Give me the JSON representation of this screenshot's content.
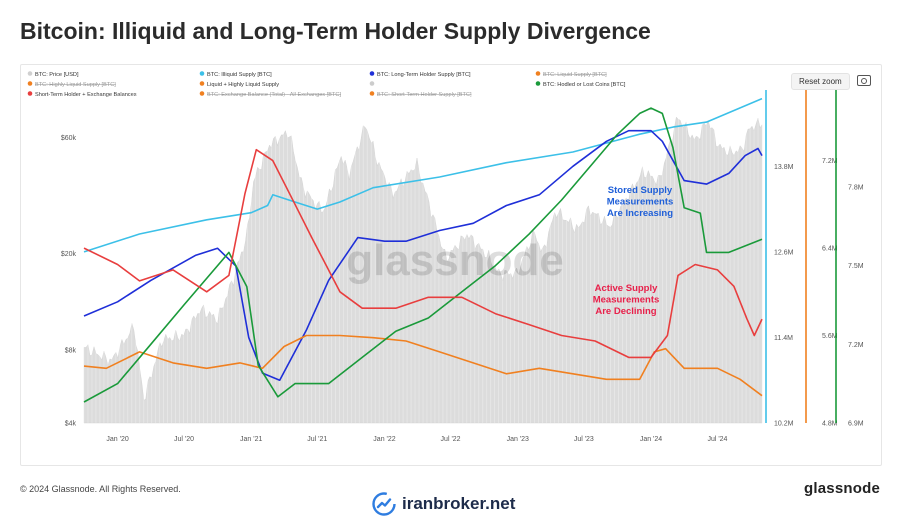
{
  "header": {
    "title": "Bitcoin: Illiquid and Long-Term Holder Supply Divergence"
  },
  "toolbar": {
    "reset_zoom_label": "Reset zoom",
    "camera_icon": "camera-icon"
  },
  "footer": {
    "copyright": "© 2024 Glassnode. All Rights Reserved.",
    "brand": "glassnode",
    "watermark_text": "iranbroker.net",
    "watermark_icon": "chart-logo-icon"
  },
  "chart_data": {
    "type": "line",
    "watermark": "glassnode",
    "legend": [
      {
        "name": "BTC: Price [USD]",
        "color": "#d0d0d0",
        "struck": false
      },
      {
        "name": "BTC: Illiquid Supply [BTC]",
        "color": "#3cc0e8",
        "struck": false
      },
      {
        "name": "BTC: Long-Term Holder Supply [BTC]",
        "color": "#1f2fd8",
        "struck": false
      },
      {
        "name": "BTC: Liquid Supply [BTC]",
        "color": "#f08020",
        "struck": true
      },
      {
        "name": "BTC: Highly Liquid Supply [BTC]",
        "color": "#f08020",
        "struck": true
      },
      {
        "name": "Liquid + Highly Liquid Supply",
        "color": "#f08020",
        "struck": false
      },
      {
        "name": "",
        "color": "#cccccc",
        "struck": false
      },
      {
        "name": "BTC: Hodled or Lost Coins [BTC]",
        "color": "#1a9a3a",
        "struck": false
      },
      {
        "name": "Short-Term Holder + Exchange Balances",
        "color": "#e83e3e",
        "struck": false
      },
      {
        "name": "BTC: Exchange Balance (Total) - All Exchanges [BTC]",
        "color": "#f08020",
        "struck": true
      },
      {
        "name": "BTC: Short-Term Holder Supply [BTC]",
        "color": "#f08020",
        "struck": true
      }
    ],
    "x_ticks": [
      "Jan '20",
      "Jul '20",
      "Jan '21",
      "Jul '21",
      "Jan '22",
      "Jul '22",
      "Jan '23",
      "Jul '23",
      "Jan '24",
      "Jul '24"
    ],
    "x_range": [
      "2019-10-01",
      "2024-10-31"
    ],
    "price_axis": {
      "ticks": [
        "$60k",
        "$20k",
        "$8k",
        "$4k"
      ],
      "scale": "log",
      "range": [
        4000,
        90000
      ]
    },
    "right_axes": [
      {
        "ticks": [
          "13.8M",
          "12.6M",
          "11.4M",
          "10.2M"
        ],
        "range": [
          10.2,
          14.8
        ],
        "color": "#3cc0e8",
        "unit": "M"
      },
      {
        "ticks": [
          "7.2M",
          "6.4M",
          "5.6M",
          "4.8M"
        ],
        "range": [
          4.8,
          7.8
        ],
        "color": "#f08020",
        "unit": "M"
      },
      {
        "ticks": [
          "7.8M",
          "7.5M",
          "7.2M",
          "6.9M"
        ],
        "range": [
          6.9,
          8.15
        ],
        "color": "#1a9a3a",
        "unit": "M"
      }
    ],
    "annotations": [
      {
        "text": [
          "Stored Supply",
          "Measurements",
          "Are Increasing"
        ],
        "color": "#1f5fd8"
      },
      {
        "text": [
          "Active Supply",
          "Measurements",
          "Are Declining"
        ],
        "color": "#e8204a"
      }
    ],
    "series": [
      {
        "name": "BTC: Price [USD]",
        "axis": "price",
        "color": "#cfcfcf",
        "points": [
          [
            "2019-10-01",
            8200
          ],
          [
            "2019-12-15",
            7200
          ],
          [
            "2020-02-15",
            10000
          ],
          [
            "2020-03-13",
            5000
          ],
          [
            "2020-05-01",
            8800
          ],
          [
            "2020-07-01",
            9200
          ],
          [
            "2020-08-15",
            11800
          ],
          [
            "2020-10-01",
            10700
          ],
          [
            "2020-11-15",
            16000
          ],
          [
            "2020-12-20",
            23500
          ],
          [
            "2021-01-08",
            40000
          ],
          [
            "2021-02-20",
            56000
          ],
          [
            "2021-04-14",
            63500
          ],
          [
            "2021-05-20",
            38000
          ],
          [
            "2021-06-25",
            32000
          ],
          [
            "2021-07-20",
            30000
          ],
          [
            "2021-09-05",
            51000
          ],
          [
            "2021-09-25",
            42000
          ],
          [
            "2021-11-10",
            68000
          ],
          [
            "2021-12-15",
            47000
          ],
          [
            "2022-01-24",
            35000
          ],
          [
            "2022-03-30",
            47000
          ],
          [
            "2022-05-12",
            29000
          ],
          [
            "2022-06-18",
            19000
          ],
          [
            "2022-08-15",
            24000
          ],
          [
            "2022-10-15",
            19200
          ],
          [
            "2022-11-10",
            16500
          ],
          [
            "2022-12-30",
            16500
          ],
          [
            "2023-02-15",
            24500
          ],
          [
            "2023-03-10",
            20000
          ],
          [
            "2023-04-15",
            30000
          ],
          [
            "2023-06-15",
            25000
          ],
          [
            "2023-07-15",
            30500
          ],
          [
            "2023-09-10",
            25800
          ],
          [
            "2023-10-30",
            34500
          ],
          [
            "2023-12-10",
            43500
          ],
          [
            "2024-01-23",
            39500
          ],
          [
            "2024-03-14",
            73000
          ],
          [
            "2024-05-01",
            58000
          ],
          [
            "2024-06-05",
            71000
          ],
          [
            "2024-07-05",
            55000
          ],
          [
            "2024-08-05",
            52000
          ],
          [
            "2024-09-06",
            53500
          ],
          [
            "2024-09-27",
            65800
          ],
          [
            "2024-10-20",
            68000
          ],
          [
            "2024-10-31",
            69500
          ]
        ]
      },
      {
        "name": "BTC: Illiquid Supply [BTC]",
        "axis": "supply",
        "color": "#3cc0e8",
        "points": [
          [
            "2019-10-01",
            12.6
          ],
          [
            "2020-03-01",
            12.85
          ],
          [
            "2020-09-01",
            13.05
          ],
          [
            "2021-01-01",
            13.15
          ],
          [
            "2021-02-15",
            13.25
          ],
          [
            "2021-03-01",
            13.4
          ],
          [
            "2021-05-01",
            13.3
          ],
          [
            "2021-07-01",
            13.2
          ],
          [
            "2021-09-01",
            13.3
          ],
          [
            "2021-12-01",
            13.5
          ],
          [
            "2022-06-01",
            13.65
          ],
          [
            "2022-12-01",
            13.85
          ],
          [
            "2023-06-01",
            14.0
          ],
          [
            "2023-12-01",
            14.25
          ],
          [
            "2024-03-01",
            14.35
          ],
          [
            "2024-06-01",
            14.42
          ],
          [
            "2024-10-31",
            14.75
          ]
        ]
      },
      {
        "name": "BTC: Long-Term Holder Supply [BTC]",
        "axis": "supply",
        "color": "#1f2fd8",
        "points": [
          [
            "2019-10-01",
            11.7
          ],
          [
            "2020-01-01",
            11.9
          ],
          [
            "2020-04-01",
            12.2
          ],
          [
            "2020-08-01",
            12.55
          ],
          [
            "2020-10-01",
            12.65
          ],
          [
            "2020-11-20",
            12.4
          ],
          [
            "2020-12-25",
            11.4
          ],
          [
            "2021-02-01",
            10.9
          ],
          [
            "2021-03-20",
            10.8
          ],
          [
            "2021-06-01",
            11.5
          ],
          [
            "2021-08-01",
            12.2
          ],
          [
            "2021-10-20",
            12.8
          ],
          [
            "2022-01-01",
            12.75
          ],
          [
            "2022-03-01",
            12.75
          ],
          [
            "2022-06-01",
            12.9
          ],
          [
            "2022-09-01",
            13.0
          ],
          [
            "2022-12-01",
            13.25
          ],
          [
            "2023-03-01",
            13.4
          ],
          [
            "2023-06-01",
            13.8
          ],
          [
            "2023-09-01",
            14.15
          ],
          [
            "2023-11-01",
            14.3
          ],
          [
            "2024-01-01",
            14.3
          ],
          [
            "2024-02-01",
            14.15
          ],
          [
            "2024-04-01",
            13.6
          ],
          [
            "2024-06-01",
            13.55
          ],
          [
            "2024-08-01",
            13.7
          ],
          [
            "2024-09-15",
            13.95
          ],
          [
            "2024-10-20",
            14.05
          ],
          [
            "2024-10-31",
            13.95
          ]
        ]
      },
      {
        "name": "Liquid + Highly Liquid Supply",
        "axis": "liquid",
        "color": "#f08020",
        "points": [
          [
            "2019-10-01",
            5.32
          ],
          [
            "2019-12-01",
            5.3
          ],
          [
            "2020-03-01",
            5.45
          ],
          [
            "2020-06-01",
            5.35
          ],
          [
            "2020-09-01",
            5.3
          ],
          [
            "2020-12-01",
            5.35
          ],
          [
            "2021-02-01",
            5.3
          ],
          [
            "2021-04-01",
            5.5
          ],
          [
            "2021-06-01",
            5.6
          ],
          [
            "2021-09-01",
            5.6
          ],
          [
            "2021-12-01",
            5.58
          ],
          [
            "2022-03-01",
            5.55
          ],
          [
            "2022-06-01",
            5.45
          ],
          [
            "2022-09-01",
            5.35
          ],
          [
            "2022-12-01",
            5.25
          ],
          [
            "2023-03-01",
            5.3
          ],
          [
            "2023-06-01",
            5.25
          ],
          [
            "2023-09-01",
            5.2
          ],
          [
            "2023-12-01",
            5.2
          ],
          [
            "2024-01-10",
            5.45
          ],
          [
            "2024-02-10",
            5.48
          ],
          [
            "2024-04-01",
            5.3
          ],
          [
            "2024-07-01",
            5.3
          ],
          [
            "2024-09-01",
            5.2
          ],
          [
            "2024-10-31",
            5.05
          ]
        ]
      },
      {
        "name": "BTC: Hodled or Lost Coins [BTC]",
        "axis": "hodl",
        "color": "#1a9a3a",
        "points": [
          [
            "2019-10-01",
            6.98
          ],
          [
            "2020-01-01",
            7.05
          ],
          [
            "2020-04-01",
            7.2
          ],
          [
            "2020-07-01",
            7.35
          ],
          [
            "2020-11-01",
            7.55
          ],
          [
            "2020-12-20",
            7.42
          ],
          [
            "2021-01-20",
            7.12
          ],
          [
            "2021-03-15",
            7.0
          ],
          [
            "2021-05-01",
            7.05
          ],
          [
            "2021-08-01",
            7.05
          ],
          [
            "2021-11-01",
            7.15
          ],
          [
            "2022-02-01",
            7.25
          ],
          [
            "2022-05-01",
            7.3
          ],
          [
            "2022-08-01",
            7.4
          ],
          [
            "2022-11-01",
            7.5
          ],
          [
            "2023-02-01",
            7.62
          ],
          [
            "2023-05-01",
            7.75
          ],
          [
            "2023-08-01",
            7.9
          ],
          [
            "2023-10-01",
            8.0
          ],
          [
            "2023-12-01",
            8.08
          ],
          [
            "2024-01-01",
            8.1
          ],
          [
            "2024-02-01",
            8.08
          ],
          [
            "2024-03-01",
            7.95
          ],
          [
            "2024-04-01",
            7.72
          ],
          [
            "2024-05-15",
            7.7
          ],
          [
            "2024-06-01",
            7.55
          ],
          [
            "2024-08-01",
            7.55
          ],
          [
            "2024-10-31",
            7.6
          ]
        ]
      },
      {
        "name": "Short-Term Holder + Exchange Balances",
        "axis": "liquid",
        "color": "#e83e3e",
        "points": [
          [
            "2019-10-01",
            6.4
          ],
          [
            "2020-01-01",
            6.25
          ],
          [
            "2020-03-01",
            6.1
          ],
          [
            "2020-06-01",
            6.2
          ],
          [
            "2020-09-01",
            6.0
          ],
          [
            "2020-11-01",
            6.15
          ],
          [
            "2020-12-15",
            6.9
          ],
          [
            "2021-01-15",
            7.3
          ],
          [
            "2021-03-01",
            7.2
          ],
          [
            "2021-05-01",
            6.8
          ],
          [
            "2021-06-15",
            6.5
          ],
          [
            "2021-09-01",
            6.0
          ],
          [
            "2021-11-01",
            5.85
          ],
          [
            "2022-02-01",
            5.85
          ],
          [
            "2022-05-01",
            5.95
          ],
          [
            "2022-08-01",
            5.95
          ],
          [
            "2022-11-01",
            5.8
          ],
          [
            "2023-02-01",
            5.7
          ],
          [
            "2023-05-01",
            5.6
          ],
          [
            "2023-08-01",
            5.55
          ],
          [
            "2023-11-01",
            5.4
          ],
          [
            "2024-01-01",
            5.4
          ],
          [
            "2024-02-15",
            5.6
          ],
          [
            "2024-03-15",
            6.15
          ],
          [
            "2024-05-01",
            6.25
          ],
          [
            "2024-07-01",
            6.2
          ],
          [
            "2024-08-15",
            6.05
          ],
          [
            "2024-09-20",
            5.75
          ],
          [
            "2024-10-10",
            5.6
          ],
          [
            "2024-10-31",
            5.75
          ]
        ]
      }
    ]
  }
}
